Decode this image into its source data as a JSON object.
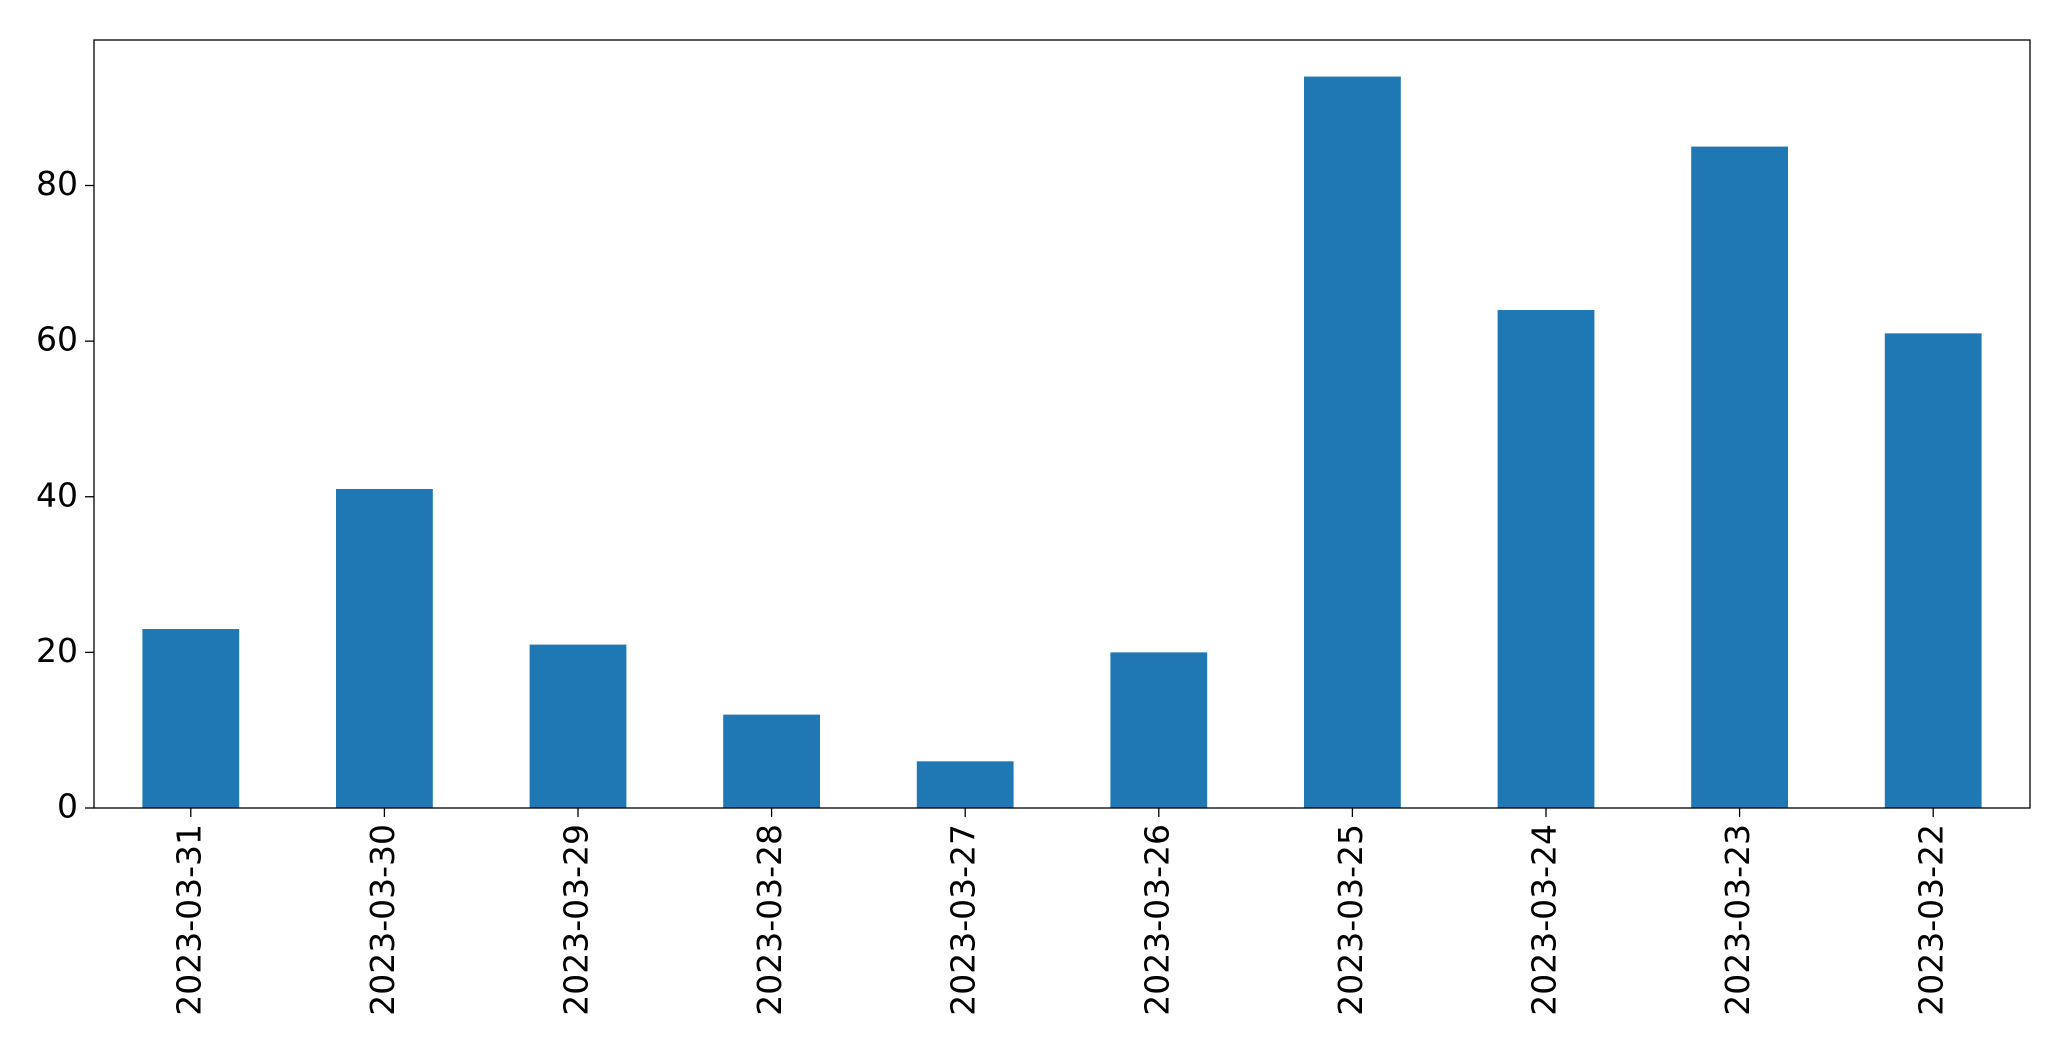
{
  "chart_data": {
    "type": "bar",
    "categories": [
      "2023-03-31",
      "2023-03-30",
      "2023-03-29",
      "2023-03-28",
      "2023-03-27",
      "2023-03-26",
      "2023-03-25",
      "2023-03-24",
      "2023-03-23",
      "2023-03-22"
    ],
    "values": [
      23,
      41,
      21,
      12,
      6,
      20,
      94,
      64,
      85,
      61
    ],
    "color": "#1f77b4",
    "ylim": [
      0,
      98.7
    ],
    "yticks": [
      0,
      20,
      40,
      60,
      80
    ],
    "grid": false
  }
}
